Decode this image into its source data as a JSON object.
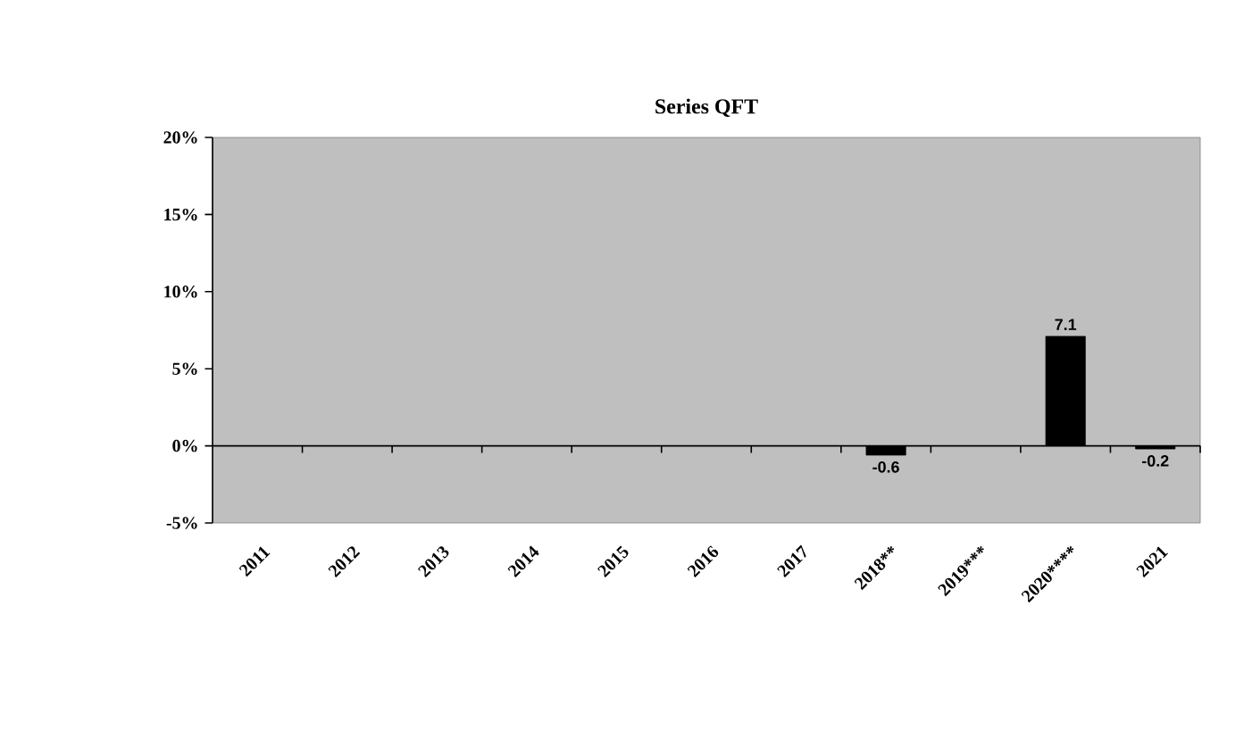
{
  "chart_data": {
    "type": "bar",
    "title": "Series QFT",
    "categories": [
      "2011",
      "2012",
      "2013",
      "2014",
      "2015",
      "2016",
      "2017",
      "2018**",
      "2019***",
      "2020****",
      "2021"
    ],
    "values": [
      null,
      null,
      null,
      null,
      null,
      null,
      null,
      -0.6,
      null,
      7.1,
      -0.2
    ],
    "color": "#000000",
    "ylim": [
      -5,
      20
    ],
    "yticks": [
      {
        "value": -5,
        "label": "-5%"
      },
      {
        "value": 0,
        "label": "0%"
      },
      {
        "value": 5,
        "label": "5%"
      },
      {
        "value": 10,
        "label": "10%"
      },
      {
        "value": 15,
        "label": "15%"
      },
      {
        "value": 20,
        "label": "20%"
      }
    ],
    "data_labels": true
  }
}
